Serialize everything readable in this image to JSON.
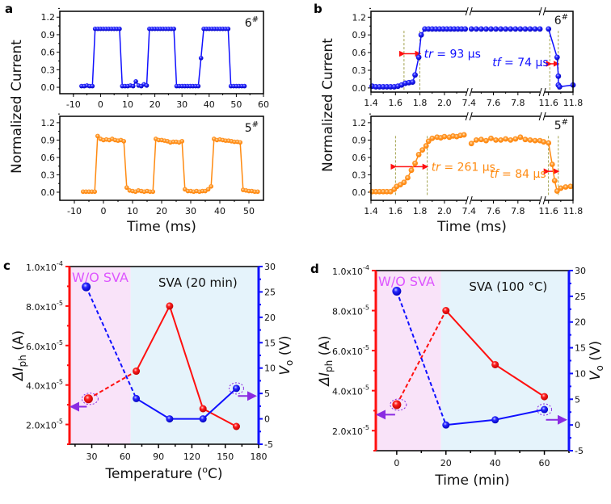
{
  "panel_letters": {
    "a": "a",
    "b": "b",
    "c": "c",
    "d": "d"
  },
  "colors": {
    "blue": "#1010ff",
    "orange": "#ff8a10",
    "red": "#ff1010",
    "pink_bg": "#f9e3f9",
    "blue_bg": "#e5f3fb",
    "magenta": "#dd55ff",
    "purple": "#8a2be2",
    "dash_olive": "#8a8a20"
  },
  "chart_data": [
    {
      "id": "a-top",
      "type": "line",
      "ylabel": "Normalized Current",
      "tag": {
        "main": "6",
        "sup": "#"
      },
      "xlim": [
        -15,
        60
      ],
      "ylim": [
        -0.11,
        1.3
      ],
      "x_ticks": [
        "-10",
        "0",
        "10",
        "20",
        "30",
        "40",
        "50",
        "60"
      ],
      "y_ticks": [
        "0.0",
        "0.3",
        "0.6",
        "0.9",
        "1.2"
      ],
      "series": [
        {
          "name": "6#",
          "color": "blue",
          "x_start": -7,
          "x_step": 1,
          "y": [
            0.02,
            0.02,
            0.03,
            0.02,
            0.02,
            1,
            1,
            1,
            1,
            1,
            1,
            1,
            1,
            1,
            1,
            0.02,
            0.02,
            0.02,
            0.03,
            0.02,
            0.1,
            0.03,
            0.02,
            0.05,
            0.03,
            1,
            1,
            1,
            1,
            1,
            1,
            1,
            1,
            1,
            1,
            0.02,
            0.02,
            0.02,
            0.02,
            0.02,
            0.02,
            0.02,
            0.02,
            0.02,
            0.5,
            1,
            1,
            1,
            1,
            1,
            1,
            1,
            1,
            1,
            1,
            0.02,
            0.02,
            0.02,
            0.02,
            0.02,
            0.02
          ]
        }
      ]
    },
    {
      "id": "a-bottom",
      "type": "line",
      "xlabel": "Time (ms)",
      "tag": {
        "main": "5",
        "sup": "#"
      },
      "xlim": [
        -15,
        55
      ],
      "ylim": [
        -0.14,
        1.31
      ],
      "x_ticks": [
        "-10",
        "0",
        "10",
        "20",
        "30",
        "40",
        "50"
      ],
      "y_ticks": [
        "0.0",
        "0.3",
        "0.6",
        "0.9",
        "1.2"
      ],
      "series": [
        {
          "name": "5#",
          "color": "orange",
          "x_start": -7,
          "x_step": 1,
          "y": [
            0.01,
            0.01,
            0.01,
            0.01,
            0.01,
            0.97,
            0.92,
            0.9,
            0.91,
            0.9,
            0.92,
            0.9,
            0.89,
            0.9,
            0.88,
            0.08,
            0.03,
            0.02,
            0.01,
            0.03,
            0.02,
            0.01,
            0.02,
            0.01,
            0.01,
            0.92,
            0.9,
            0.9,
            0.89,
            0.88,
            0.86,
            0.87,
            0.87,
            0.86,
            0.88,
            0.05,
            0.02,
            0.02,
            0.01,
            0.02,
            0.01,
            0.02,
            0.02,
            0.05,
            0.1,
            0.92,
            0.9,
            0.91,
            0.9,
            0.89,
            0.89,
            0.88,
            0.87,
            0.87,
            0.86,
            0.04,
            0.03,
            0.02,
            0.02,
            0.01,
            0.01
          ]
        }
      ]
    },
    {
      "id": "b-top",
      "type": "line",
      "ylabel": "Normalized Current",
      "tag": {
        "main": "6",
        "sup": "#"
      },
      "x_segments": [
        [
          1.4,
          2.2
        ],
        [
          7.4,
          8.0
        ],
        [
          11.55,
          11.8
        ]
      ],
      "ylim": [
        -0.07,
        1.3
      ],
      "x_ticks": [
        "1.4",
        "1.6",
        "1.8",
        "2.0",
        "7.4",
        "7.6",
        "7.8",
        "11.6",
        "11.8"
      ],
      "y_ticks": [
        "0.0",
        "0.3",
        "0.6",
        "0.9",
        "1.2"
      ],
      "series": [
        {
          "name": "6#",
          "color": "blue",
          "points": [
            [
              1.41,
              0.03
            ],
            [
              1.44,
              0.02
            ],
            [
              1.47,
              0.02
            ],
            [
              1.5,
              0.02
            ],
            [
              1.53,
              0.02
            ],
            [
              1.56,
              0.02
            ],
            [
              1.59,
              0.02
            ],
            [
              1.62,
              0.03
            ],
            [
              1.65,
              0.05
            ],
            [
              1.68,
              0.08
            ],
            [
              1.71,
              0.09
            ],
            [
              1.74,
              0.1
            ],
            [
              1.76,
              0.22
            ],
            [
              1.79,
              0.52
            ],
            [
              1.81,
              0.9
            ],
            [
              1.84,
              1.0
            ],
            [
              1.87,
              1.0
            ],
            [
              1.9,
              1.0
            ],
            [
              1.93,
              1.0
            ],
            [
              1.96,
              1.0
            ],
            [
              1.99,
              1.0
            ],
            [
              2.02,
              1.0
            ],
            [
              2.05,
              1.0
            ],
            [
              2.08,
              1.0
            ],
            [
              2.11,
              1.0
            ],
            [
              2.14,
              1.0
            ],
            [
              2.17,
              1.0
            ],
            [
              7.42,
              1.0
            ],
            [
              7.46,
              1.0
            ],
            [
              7.5,
              1.0
            ],
            [
              7.54,
              1.0
            ],
            [
              7.58,
              1.0
            ],
            [
              7.62,
              1.0
            ],
            [
              7.66,
              1.0
            ],
            [
              7.7,
              1.0
            ],
            [
              7.74,
              1.0
            ],
            [
              7.78,
              1.0
            ],
            [
              7.82,
              1.0
            ],
            [
              7.86,
              1.0
            ],
            [
              7.9,
              1.0
            ],
            [
              7.94,
              1.0
            ],
            [
              7.98,
              1.0
            ],
            [
              11.6,
              1.0
            ],
            [
              11.67,
              0.52
            ],
            [
              11.68,
              0.2
            ],
            [
              11.68,
              0.05
            ],
            [
              11.69,
              0.02
            ],
            [
              11.8,
              0.05
            ]
          ]
        }
      ],
      "markers": {
        "dashed_x": [
          1.67,
          1.8,
          11.61,
          11.68
        ],
        "rise_arrow": [
          1.67,
          1.8,
          0.58
        ],
        "fall_arrow": [
          11.62,
          11.68,
          0.41
        ]
      },
      "annotations": {
        "tr": {
          "symbol": "tr",
          "value": " = 93 µs"
        },
        "tf": {
          "symbol": "tf",
          "value": " = 74 µs"
        }
      }
    },
    {
      "id": "b-bottom",
      "type": "line",
      "xlabel": "Time (ms)",
      "tag": {
        "main": "5",
        "sup": "#"
      },
      "x_segments": [
        [
          1.4,
          2.2
        ],
        [
          7.4,
          8.0
        ],
        [
          11.55,
          11.8
        ]
      ],
      "ylim": [
        -0.14,
        1.31
      ],
      "x_ticks": [
        "1.4",
        "1.6",
        "1.8",
        "2.0",
        "7.4",
        "7.6",
        "7.8",
        "11.6",
        "11.8"
      ],
      "y_ticks": [
        "0.0",
        "0.3",
        "0.6",
        "0.9",
        "1.2"
      ],
      "series": [
        {
          "name": "5#",
          "color": "orange",
          "points": [
            [
              1.41,
              0.01
            ],
            [
              1.44,
              0.01
            ],
            [
              1.47,
              0.01
            ],
            [
              1.5,
              0.01
            ],
            [
              1.53,
              0.01
            ],
            [
              1.56,
              0.01
            ],
            [
              1.59,
              0.05
            ],
            [
              1.61,
              0.1
            ],
            [
              1.64,
              0.13
            ],
            [
              1.67,
              0.17
            ],
            [
              1.7,
              0.25
            ],
            [
              1.73,
              0.38
            ],
            [
              1.76,
              0.5
            ],
            [
              1.79,
              0.65
            ],
            [
              1.82,
              0.73
            ],
            [
              1.85,
              0.8
            ],
            [
              1.87,
              0.88
            ],
            [
              1.9,
              0.93
            ],
            [
              1.94,
              0.95
            ],
            [
              1.97,
              0.94
            ],
            [
              2.0,
              0.96
            ],
            [
              2.04,
              0.95
            ],
            [
              2.07,
              0.97
            ],
            [
              2.1,
              0.96
            ],
            [
              2.13,
              0.98
            ],
            [
              2.16,
              0.99
            ],
            [
              7.42,
              0.84
            ],
            [
              7.46,
              0.9
            ],
            [
              7.5,
              0.91
            ],
            [
              7.54,
              0.89
            ],
            [
              7.58,
              0.93
            ],
            [
              7.62,
              0.9
            ],
            [
              7.66,
              0.9
            ],
            [
              7.7,
              0.92
            ],
            [
              7.74,
              0.9
            ],
            [
              7.78,
              0.92
            ],
            [
              7.82,
              0.95
            ],
            [
              7.86,
              0.91
            ],
            [
              7.9,
              0.9
            ],
            [
              7.94,
              0.89
            ],
            [
              7.98,
              0.89
            ],
            [
              11.56,
              0.87
            ],
            [
              11.6,
              0.85
            ],
            [
              11.63,
              0.48
            ],
            [
              11.65,
              0.2
            ],
            [
              11.67,
              0.02
            ],
            [
              11.7,
              0.07
            ],
            [
              11.74,
              0.09
            ],
            [
              11.78,
              0.1
            ]
          ]
        }
      ],
      "markers": {
        "dashed_x": [
          1.6,
          1.86,
          11.6,
          11.68
        ],
        "rise_arrow": [
          1.6,
          1.86,
          0.44
        ],
        "fall_arrow": [
          11.6,
          11.68,
          0.36
        ]
      },
      "annotations": {
        "tr": {
          "symbol": "tr",
          "value": " = 261 µs"
        },
        "tf": {
          "symbol": "tf",
          "value": " = 84 µs"
        }
      }
    },
    {
      "id": "c",
      "type": "line-dual-axis",
      "xlabel": {
        "pre": "Temperature (",
        "sup": "o",
        "post": "C)"
      },
      "ylabel_left": {
        "main": "ΔI",
        "sub": "ph",
        "unit": " (A)"
      },
      "ylabel_right": {
        "main": "V",
        "sub": "o",
        "unit": " (V)"
      },
      "xlim": [
        10,
        180
      ],
      "ylim_left": [
        1e-05,
        0.0001
      ],
      "ylim_right": [
        -5,
        30
      ],
      "x_ticks": [
        "30",
        "60",
        "90",
        "120",
        "150",
        "180"
      ],
      "y_ticks_left": [
        {
          "m": "2.0x10",
          "e": "-5",
          "v": 2e-05
        },
        {
          "m": "4.0x10",
          "e": "-5",
          "v": 4e-05
        },
        {
          "m": "6.0x10",
          "e": "-5",
          "v": 6e-05
        },
        {
          "m": "8.0x10",
          "e": "-5",
          "v": 8e-05
        },
        {
          "m": "1.0x10",
          "e": "-4",
          "v": 0.0001
        }
      ],
      "y_ticks_right": [
        "-5",
        "0",
        "5",
        "10",
        "15",
        "20",
        "25",
        "30"
      ],
      "regions": [
        {
          "label": "W/O SVA",
          "x": [
            10,
            65
          ],
          "color": "pink_bg"
        },
        {
          "label": "SVA (20 min)",
          "x": [
            65,
            180
          ],
          "color": "blue_bg"
        }
      ],
      "series": [
        {
          "name": "ΔIph",
          "axis": "left",
          "color": "red",
          "x": [
            27,
            70,
            100,
            130,
            160
          ],
          "y": [
            3.3e-05,
            4.7e-05,
            8e-05,
            2.8e-05,
            1.9e-05
          ]
        },
        {
          "name": "Vo",
          "axis": "right",
          "color": "blue",
          "x": [
            25,
            70,
            100,
            130,
            160
          ],
          "y": [
            26,
            4,
            0,
            0,
            6
          ]
        }
      ],
      "axis_arrows": {
        "left_from": [
          27,
          3.3e-05
        ],
        "left_level": 2.9e-05,
        "right_from": [
          160,
          6
        ],
        "right_level": 4.5
      }
    },
    {
      "id": "d",
      "type": "line-dual-axis",
      "xlabel": {
        "pre": "Time (min)",
        "sup": "",
        "post": ""
      },
      "ylabel_left": {
        "main": "ΔI",
        "sub": "ph",
        "unit": " (A)"
      },
      "ylabel_right": {
        "main": "V",
        "sub": "o",
        "unit": " (V)"
      },
      "xlim": [
        -8.5,
        70
      ],
      "ylim_left": [
        1e-05,
        0.0001
      ],
      "ylim_right": [
        -5,
        30
      ],
      "x_ticks": [
        "0",
        "20",
        "40",
        "60"
      ],
      "y_ticks_left": [
        {
          "m": "2.0x10",
          "e": "-5",
          "v": 2e-05
        },
        {
          "m": "4.0x10",
          "e": "-5",
          "v": 4e-05
        },
        {
          "m": "6.0x10",
          "e": "-5",
          "v": 6e-05
        },
        {
          "m": "8.0x10",
          "e": "-5",
          "v": 8e-05
        },
        {
          "m": "1.0x10",
          "e": "-4",
          "v": 0.0001
        }
      ],
      "y_ticks_right": [
        "-5",
        "0",
        "5",
        "10",
        "15",
        "20",
        "25",
        "30"
      ],
      "regions": [
        {
          "label": "W/O SVA",
          "x": [
            -8.5,
            18
          ],
          "color": "pink_bg"
        },
        {
          "label": "SVA (100 °C)",
          "x": [
            18,
            70
          ],
          "color": "blue_bg"
        }
      ],
      "series": [
        {
          "name": "ΔIph",
          "axis": "left",
          "color": "red",
          "x": [
            0,
            20,
            40,
            60
          ],
          "y": [
            3.3e-05,
            8e-05,
            5.3e-05,
            3.7e-05
          ]
        },
        {
          "name": "Vo",
          "axis": "right",
          "color": "blue",
          "x": [
            0,
            20,
            40,
            60
          ],
          "y": [
            26,
            0,
            1,
            3
          ]
        }
      ],
      "axis_arrows": {
        "left_from": [
          0,
          3.3e-05
        ],
        "left_level": 2.8e-05,
        "right_from": [
          60,
          3
        ],
        "right_level": 1
      }
    }
  ]
}
